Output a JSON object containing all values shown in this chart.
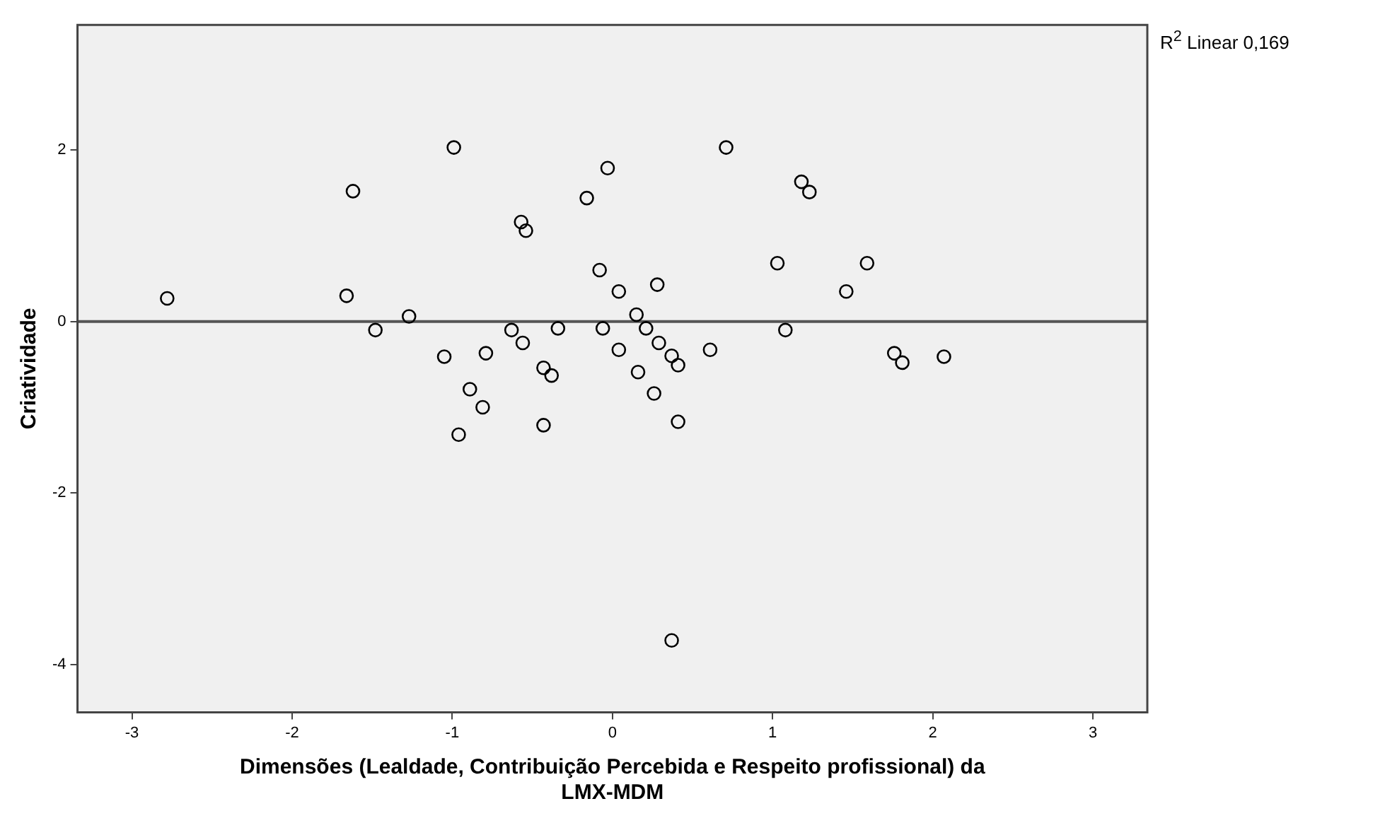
{
  "chart_data": {
    "type": "scatter",
    "xlabel": "Dimensões (Lealdade, Contribuição Percebida e Respeito profissional) da LMX-MDM",
    "ylabel": "Criatividade",
    "annotations": [
      "R$^{2}$ Linear 0,169"
    ],
    "xlim": [
      -3.34,
      3.34
    ],
    "ylim": [
      -4.56,
      3.46
    ],
    "xticks": [
      -3,
      -2,
      -1,
      0,
      1,
      2,
      3
    ],
    "yticks": [
      -4,
      -2,
      0,
      2
    ],
    "grid": false,
    "legend": false,
    "series": [
      {
        "marker": "circle",
        "color": "#000000",
        "x": [
          -2.78,
          -1.66,
          -1.62,
          -1.48,
          -1.27,
          -1.05,
          -0.99,
          -0.96,
          -0.89,
          -0.81,
          -0.79,
          -0.63,
          -0.56,
          -0.57,
          -0.54,
          -0.43,
          -0.43,
          -0.38,
          -0.34,
          -0.16,
          -0.08,
          -0.06,
          -0.03,
          0.04,
          0.04,
          0.15,
          0.16,
          0.21,
          0.28,
          0.29,
          0.37,
          0.41,
          0.26,
          0.41,
          0.61,
          0.71,
          1.03,
          1.08,
          1.18,
          1.23,
          1.46,
          1.59,
          1.76,
          1.81,
          2.07,
          0.37
        ],
        "values": [
          0.27,
          0.3,
          1.52,
          -0.1,
          0.06,
          -0.41,
          2.03,
          -1.32,
          -0.79,
          -1.0,
          -0.37,
          -0.1,
          -0.25,
          1.16,
          1.06,
          -0.54,
          -1.21,
          -0.63,
          -0.08,
          1.44,
          0.6,
          -0.08,
          1.79,
          0.35,
          -0.33,
          0.08,
          -0.59,
          -0.08,
          0.43,
          -0.25,
          -0.4,
          -0.51,
          -0.84,
          -1.17,
          -0.33,
          2.03,
          0.68,
          -0.1,
          1.63,
          1.51,
          0.35,
          0.68,
          -0.37,
          -0.48,
          -0.41,
          -3.72
        ]
      },
      {
        "type": "line",
        "color": "#555555",
        "line_style": "solid",
        "x": [
          -3.34,
          3.34
        ],
        "values": [
          0,
          0
        ]
      }
    ]
  }
}
